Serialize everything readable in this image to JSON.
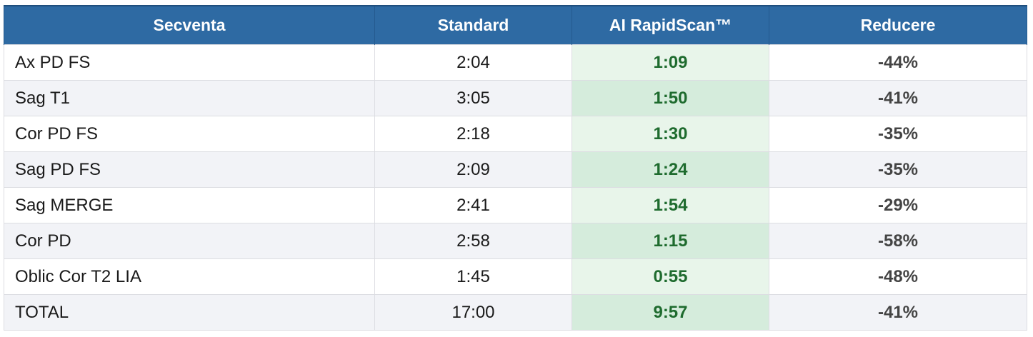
{
  "table": {
    "header": [
      "Secventa",
      "Standard",
      "AI RapidScan™",
      "Reducere"
    ],
    "rows": [
      [
        "Ax PD FS",
        "2:04",
        "1:09",
        "-44%"
      ],
      [
        "Sag T1",
        "3:05",
        "1:50",
        "-41%"
      ],
      [
        "Cor PD FS",
        "2:18",
        "1:30",
        "-35%"
      ],
      [
        "Sag PD FS",
        "2:09",
        "1:24",
        "-35%"
      ],
      [
        "Sag MERGE",
        "2:41",
        "1:54",
        "-29%"
      ],
      [
        "Cor PD",
        "2:58",
        "1:15",
        "-58%"
      ],
      [
        "Oblic Cor T2 LIA",
        "1:45",
        "0:55",
        "-48%"
      ],
      [
        "TOTAL",
        "17:00",
        "9:57",
        "-41%"
      ]
    ]
  }
}
